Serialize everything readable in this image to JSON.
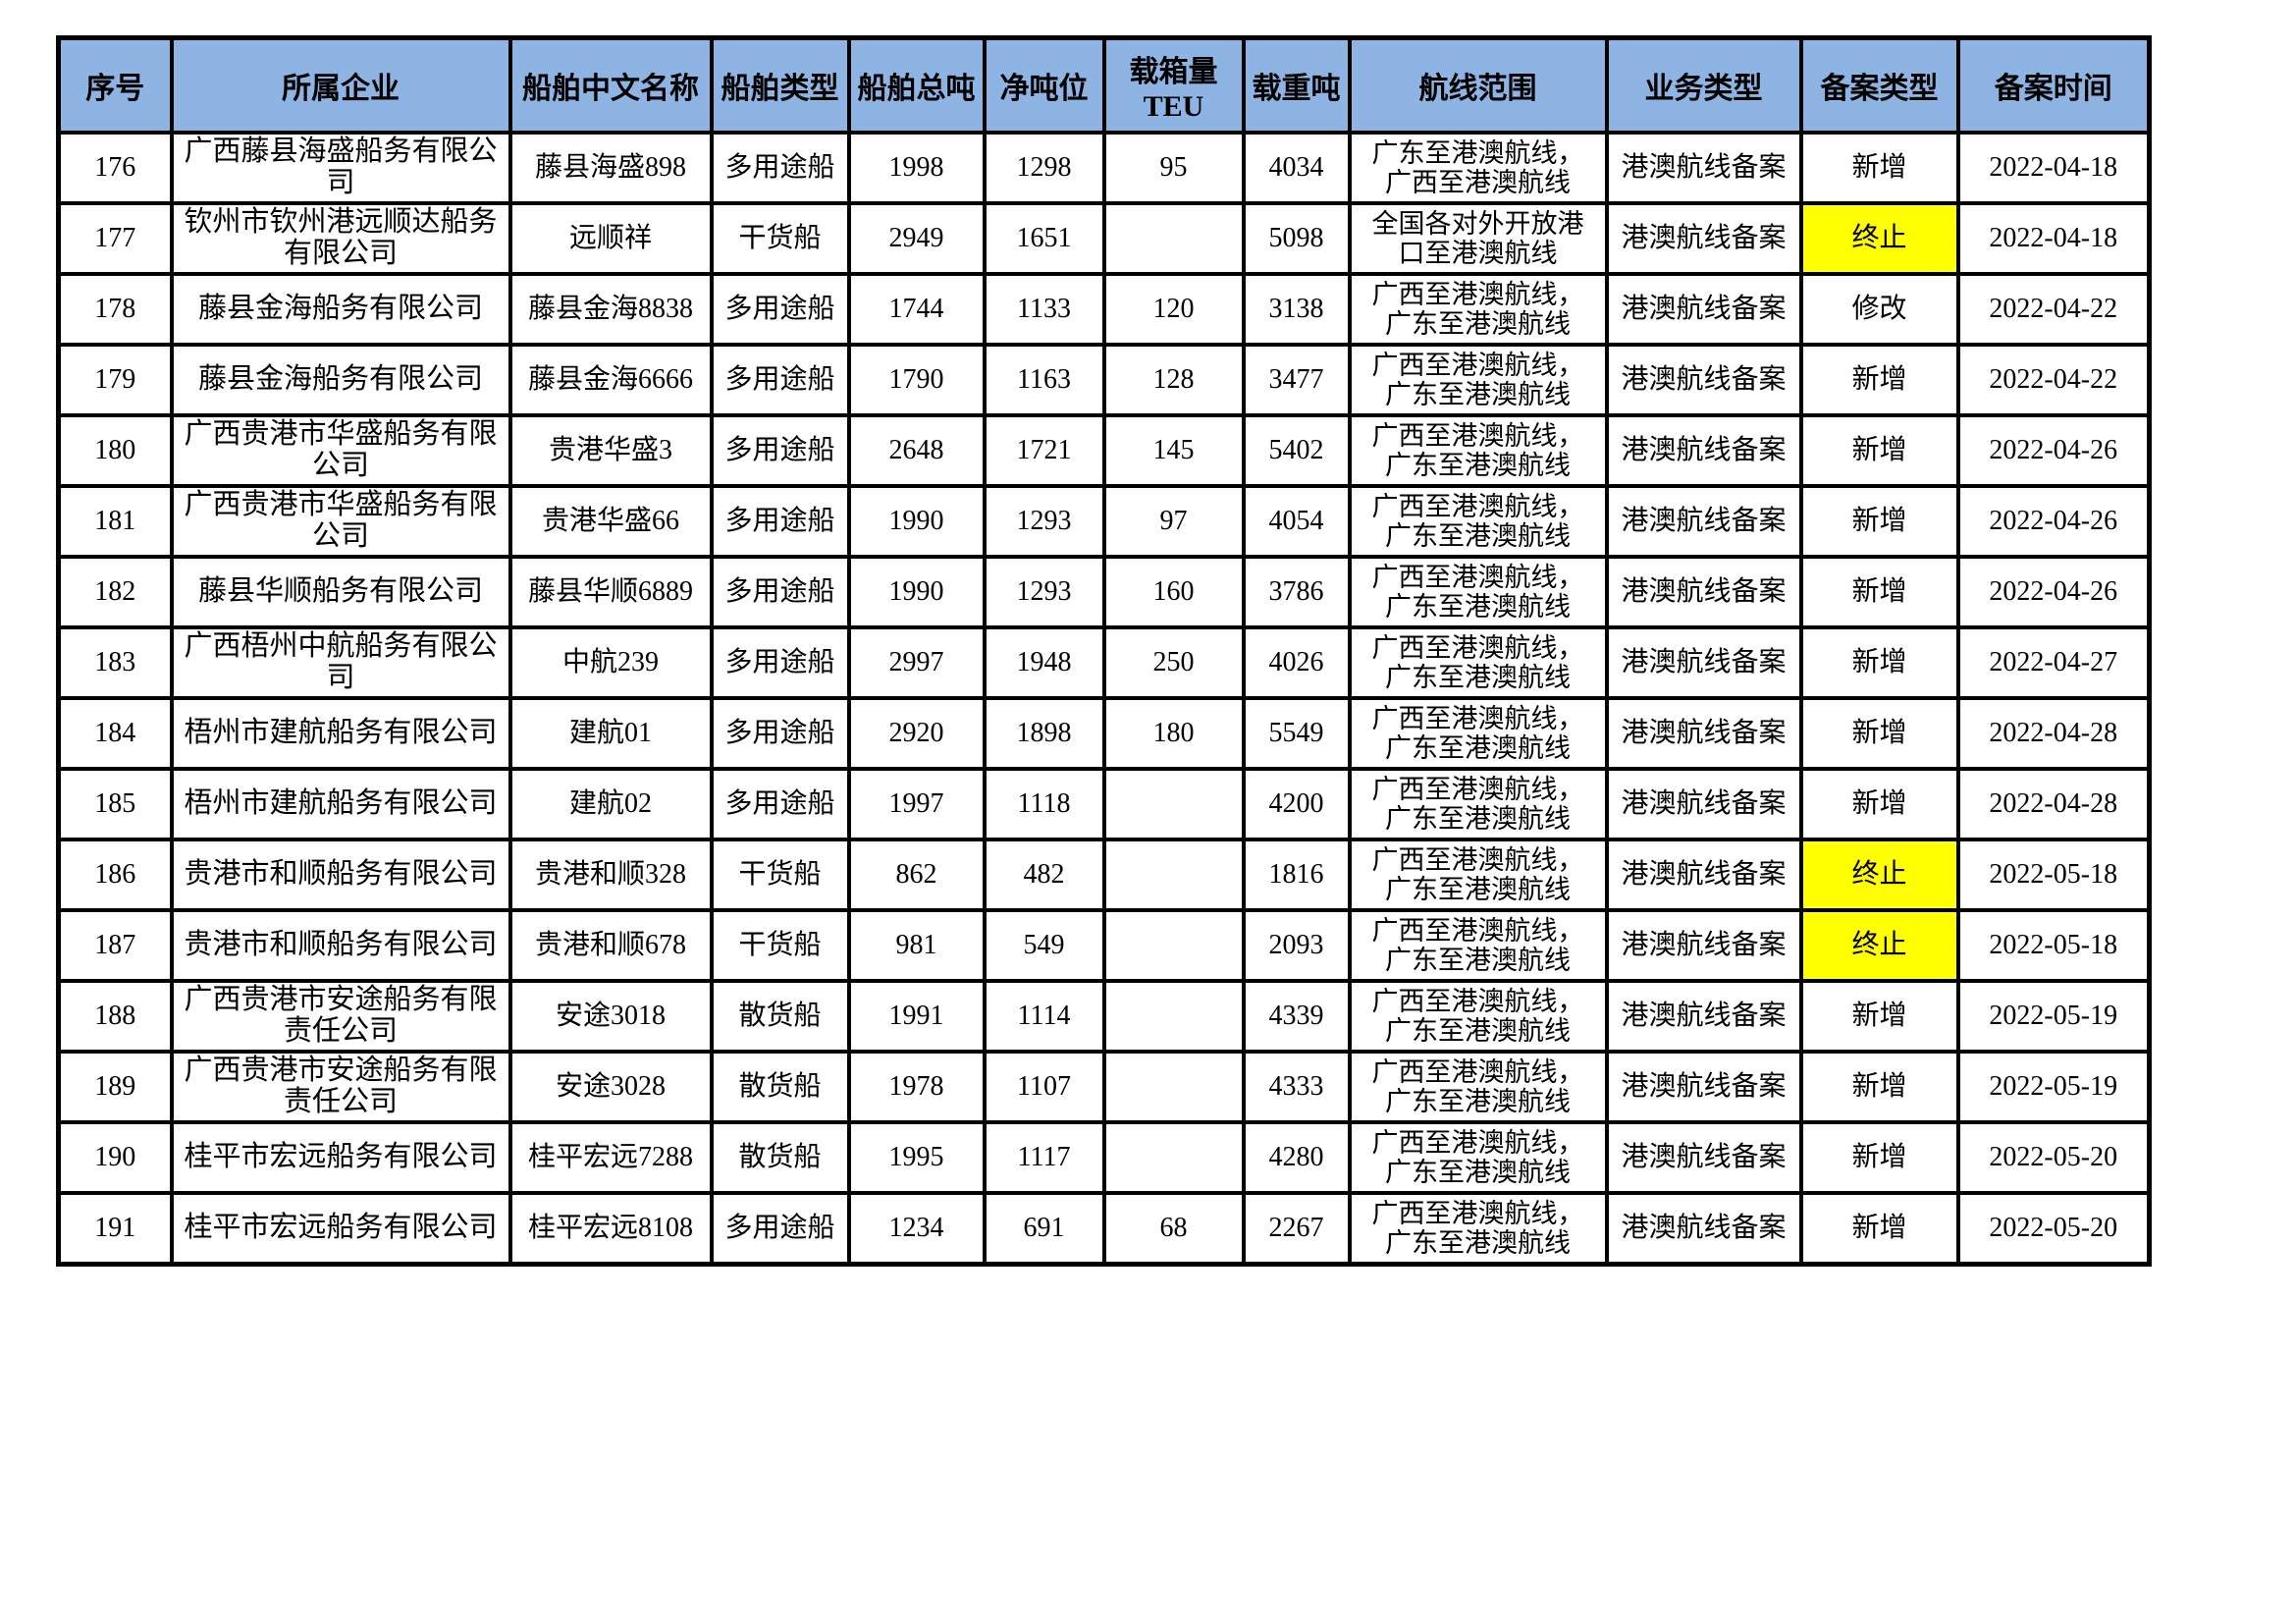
{
  "colors": {
    "header_bg": "#8DB4E2",
    "highlight_bg": "#FFFF00",
    "border": "#000000"
  },
  "table": {
    "columns": [
      {
        "key": "no",
        "label": "序号"
      },
      {
        "key": "company",
        "label": "所属企业"
      },
      {
        "key": "ship",
        "label": "船舶中文名称"
      },
      {
        "key": "type",
        "label": "船舶类型"
      },
      {
        "key": "gross",
        "label": "船舶总吨"
      },
      {
        "key": "net",
        "label": "净吨位"
      },
      {
        "key": "teu",
        "label": "载箱量TEU"
      },
      {
        "key": "dwt",
        "label": "载重吨"
      },
      {
        "key": "route",
        "label": "航线范围"
      },
      {
        "key": "business",
        "label": "业务类型"
      },
      {
        "key": "filing",
        "label": "备案类型"
      },
      {
        "key": "date",
        "label": "备案时间"
      }
    ],
    "rows": [
      {
        "no": "176",
        "company": "广西藤县海盛船务有限公司",
        "ship": "藤县海盛898",
        "type": "多用途船",
        "gross": "1998",
        "net": "1298",
        "teu": "95",
        "dwt": "4034",
        "route": "广东至港澳航线，\n广西至港澳航线",
        "business": "港澳航线备案",
        "filing": "新增",
        "filing_highlight": false,
        "date": "2022-04-18"
      },
      {
        "no": "177",
        "company": "钦州市钦州港远顺达船务有限公司",
        "ship": "远顺祥",
        "type": "干货船",
        "gross": "2949",
        "net": "1651",
        "teu": "",
        "dwt": "5098",
        "route": "全国各对外开放港\n口至港澳航线",
        "business": "港澳航线备案",
        "filing": "终止",
        "filing_highlight": true,
        "date": "2022-04-18"
      },
      {
        "no": "178",
        "company": "藤县金海船务有限公司",
        "ship": "藤县金海8838",
        "type": "多用途船",
        "gross": "1744",
        "net": "1133",
        "teu": "120",
        "dwt": "3138",
        "route": "广西至港澳航线，\n广东至港澳航线",
        "business": "港澳航线备案",
        "filing": "修改",
        "filing_highlight": false,
        "date": "2022-04-22"
      },
      {
        "no": "179",
        "company": "藤县金海船务有限公司",
        "ship": "藤县金海6666",
        "type": "多用途船",
        "gross": "1790",
        "net": "1163",
        "teu": "128",
        "dwt": "3477",
        "route": "广西至港澳航线，\n广东至港澳航线",
        "business": "港澳航线备案",
        "filing": "新增",
        "filing_highlight": false,
        "date": "2022-04-22"
      },
      {
        "no": "180",
        "company": "广西贵港市华盛船务有限公司",
        "ship": "贵港华盛3",
        "type": "多用途船",
        "gross": "2648",
        "net": "1721",
        "teu": "145",
        "dwt": "5402",
        "route": "广西至港澳航线，\n广东至港澳航线",
        "business": "港澳航线备案",
        "filing": "新增",
        "filing_highlight": false,
        "date": "2022-04-26"
      },
      {
        "no": "181",
        "company": "广西贵港市华盛船务有限公司",
        "ship": "贵港华盛66",
        "type": "多用途船",
        "gross": "1990",
        "net": "1293",
        "teu": "97",
        "dwt": "4054",
        "route": "广西至港澳航线，\n广东至港澳航线",
        "business": "港澳航线备案",
        "filing": "新增",
        "filing_highlight": false,
        "date": "2022-04-26"
      },
      {
        "no": "182",
        "company": "藤县华顺船务有限公司",
        "ship": "藤县华顺6889",
        "type": "多用途船",
        "gross": "1990",
        "net": "1293",
        "teu": "160",
        "dwt": "3786",
        "route": "广西至港澳航线，\n广东至港澳航线",
        "business": "港澳航线备案",
        "filing": "新增",
        "filing_highlight": false,
        "date": "2022-04-26"
      },
      {
        "no": "183",
        "company": "广西梧州中航船务有限公司",
        "ship": "中航239",
        "type": "多用途船",
        "gross": "2997",
        "net": "1948",
        "teu": "250",
        "dwt": "4026",
        "route": "广西至港澳航线，\n广东至港澳航线",
        "business": "港澳航线备案",
        "filing": "新增",
        "filing_highlight": false,
        "date": "2022-04-27"
      },
      {
        "no": "184",
        "company": "梧州市建航船务有限公司",
        "ship": "建航01",
        "type": "多用途船",
        "gross": "2920",
        "net": "1898",
        "teu": "180",
        "dwt": "5549",
        "route": "广西至港澳航线，\n广东至港澳航线",
        "business": "港澳航线备案",
        "filing": "新增",
        "filing_highlight": false,
        "date": "2022-04-28"
      },
      {
        "no": "185",
        "company": "梧州市建航船务有限公司",
        "ship": "建航02",
        "type": "多用途船",
        "gross": "1997",
        "net": "1118",
        "teu": "",
        "dwt": "4200",
        "route": "广西至港澳航线，\n广东至港澳航线",
        "business": "港澳航线备案",
        "filing": "新增",
        "filing_highlight": false,
        "date": "2022-04-28"
      },
      {
        "no": "186",
        "company": "贵港市和顺船务有限公司",
        "ship": "贵港和顺328",
        "type": "干货船",
        "gross": "862",
        "net": "482",
        "teu": "",
        "dwt": "1816",
        "route": "广西至港澳航线，\n广东至港澳航线",
        "business": "港澳航线备案",
        "filing": "终止",
        "filing_highlight": true,
        "date": "2022-05-18"
      },
      {
        "no": "187",
        "company": "贵港市和顺船务有限公司",
        "ship": "贵港和顺678",
        "type": "干货船",
        "gross": "981",
        "net": "549",
        "teu": "",
        "dwt": "2093",
        "route": "广西至港澳航线，\n广东至港澳航线",
        "business": "港澳航线备案",
        "filing": "终止",
        "filing_highlight": true,
        "date": "2022-05-18"
      },
      {
        "no": "188",
        "company": "广西贵港市安途船务有限责任公司",
        "ship": "安途3018",
        "type": "散货船",
        "gross": "1991",
        "net": "1114",
        "teu": "",
        "dwt": "4339",
        "route": "广西至港澳航线，\n广东至港澳航线",
        "business": "港澳航线备案",
        "filing": "新增",
        "filing_highlight": false,
        "date": "2022-05-19"
      },
      {
        "no": "189",
        "company": "广西贵港市安途船务有限责任公司",
        "ship": "安途3028",
        "type": "散货船",
        "gross": "1978",
        "net": "1107",
        "teu": "",
        "dwt": "4333",
        "route": "广西至港澳航线，\n广东至港澳航线",
        "business": "港澳航线备案",
        "filing": "新增",
        "filing_highlight": false,
        "date": "2022-05-19"
      },
      {
        "no": "190",
        "company": "桂平市宏远船务有限公司",
        "ship": "桂平宏远7288",
        "type": "散货船",
        "gross": "1995",
        "net": "1117",
        "teu": "",
        "dwt": "4280",
        "route": "广西至港澳航线，\n广东至港澳航线",
        "business": "港澳航线备案",
        "filing": "新增",
        "filing_highlight": false,
        "date": "2022-05-20"
      },
      {
        "no": "191",
        "company": "桂平市宏远船务有限公司",
        "ship": "桂平宏远8108",
        "type": "多用途船",
        "gross": "1234",
        "net": "691",
        "teu": "68",
        "dwt": "2267",
        "route": "广西至港澳航线，\n广东至港澳航线",
        "business": "港澳航线备案",
        "filing": "新增",
        "filing_highlight": false,
        "date": "2022-05-20"
      }
    ]
  }
}
